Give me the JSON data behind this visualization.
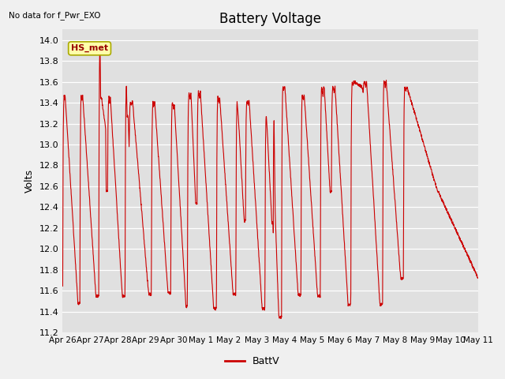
{
  "title": "Battery Voltage",
  "ylabel": "Volts",
  "top_left_text": "No data for f_Pwr_EXO",
  "annotation_text": "HS_met",
  "legend_label": "BattV",
  "line_color": "#cc0000",
  "bg_color": "#e0e0e0",
  "ylim": [
    11.2,
    14.1
  ],
  "yticks": [
    11.2,
    11.4,
    11.6,
    11.8,
    12.0,
    12.2,
    12.4,
    12.6,
    12.8,
    13.0,
    13.2,
    13.4,
    13.6,
    13.8,
    14.0
  ],
  "xtick_labels": [
    "Apr 26",
    "Apr 27",
    "Apr 28",
    "Apr 29",
    "Apr 30",
    "May 1",
    "May 2",
    "May 3",
    "May 4",
    "May 5",
    "May 6",
    "May 7",
    "May 8",
    "May 9",
    "May 10",
    "May 11"
  ],
  "num_days": 15,
  "fig_width": 6.4,
  "fig_height": 4.8,
  "dpi": 100
}
